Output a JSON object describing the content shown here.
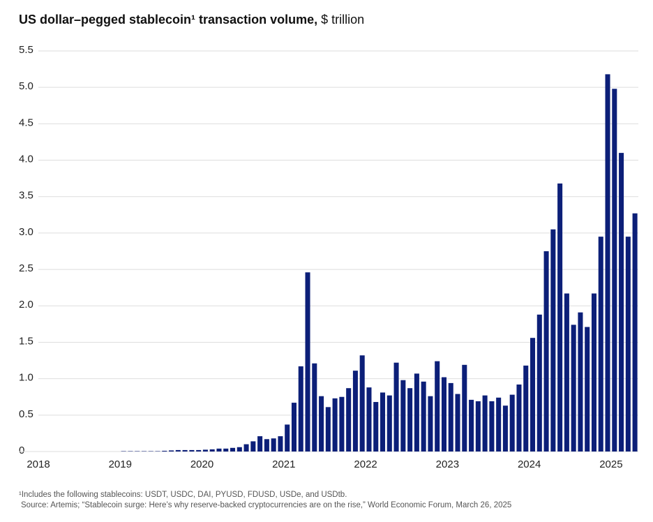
{
  "chart_data": {
    "type": "bar",
    "title": "US dollar–pegged stablecoin¹ transaction volume,",
    "unit": "$ trillion",
    "footnotes": [
      "¹Includes the following stablecoins: USDT, USDC, DAI, PYUSD, FDUSD, USDe, and USDtb.",
      "Source: Artemis; “Stablecoin surge: Here’s why reserve-backed cryptocurrencies are on the rise,” World Economic Forum, March 26, 2025"
    ],
    "categories": [
      "2018",
      null,
      null,
      null,
      null,
      null,
      null,
      null,
      null,
      null,
      null,
      null,
      "2019",
      null,
      null,
      null,
      null,
      null,
      null,
      null,
      null,
      null,
      null,
      null,
      "2020",
      null,
      null,
      null,
      null,
      null,
      null,
      null,
      null,
      null,
      null,
      null,
      "2021",
      null,
      null,
      null,
      null,
      null,
      null,
      null,
      null,
      null,
      null,
      null,
      "2022",
      null,
      null,
      null,
      null,
      null,
      null,
      null,
      null,
      null,
      null,
      null,
      "2023",
      null,
      null,
      null,
      null,
      null,
      null,
      null,
      null,
      null,
      null,
      null,
      "2024",
      null,
      null,
      null,
      null,
      null,
      null,
      null,
      null,
      null,
      null,
      null,
      "2025",
      null,
      null,
      null
    ],
    "values": [
      0,
      0,
      0,
      0,
      0,
      0,
      0,
      0,
      0,
      0,
      0,
      0,
      0.005,
      0.005,
      0.005,
      0.005,
      0.005,
      0.005,
      0.01,
      0.015,
      0.02,
      0.02,
      0.02,
      0.02,
      0.025,
      0.03,
      0.04,
      0.04,
      0.05,
      0.06,
      0.1,
      0.14,
      0.21,
      0.17,
      0.18,
      0.21,
      0.37,
      0.67,
      1.17,
      2.46,
      1.21,
      0.76,
      0.61,
      0.73,
      0.75,
      0.87,
      1.11,
      1.32,
      0.88,
      0.68,
      0.81,
      0.77,
      1.22,
      0.98,
      0.87,
      1.07,
      0.96,
      0.76,
      1.24,
      1.02,
      0.94,
      0.79,
      1.19,
      0.71,
      0.69,
      0.77,
      0.69,
      0.74,
      0.63,
      0.78,
      0.92,
      1.18,
      1.56,
      1.88,
      2.75,
      3.05,
      3.68,
      2.17,
      1.74,
      1.91,
      1.71,
      2.17,
      2.95,
      5.18,
      4.98,
      4.1,
      2.95,
      3.27
    ],
    "color": "#0c1f78",
    "ylim": [
      0,
      5.5
    ],
    "yticks": [
      0,
      0.5,
      {
        "value": 1,
        "label": "1.0"
      },
      1.5,
      {
        "value": 2,
        "label": "2.0"
      },
      2.5,
      {
        "value": 3,
        "label": "3.0"
      },
      3.5,
      {
        "value": 4,
        "label": "4.0"
      },
      4.5,
      {
        "value": 5,
        "label": "5.0"
      },
      5.5
    ],
    "grid": true
  }
}
